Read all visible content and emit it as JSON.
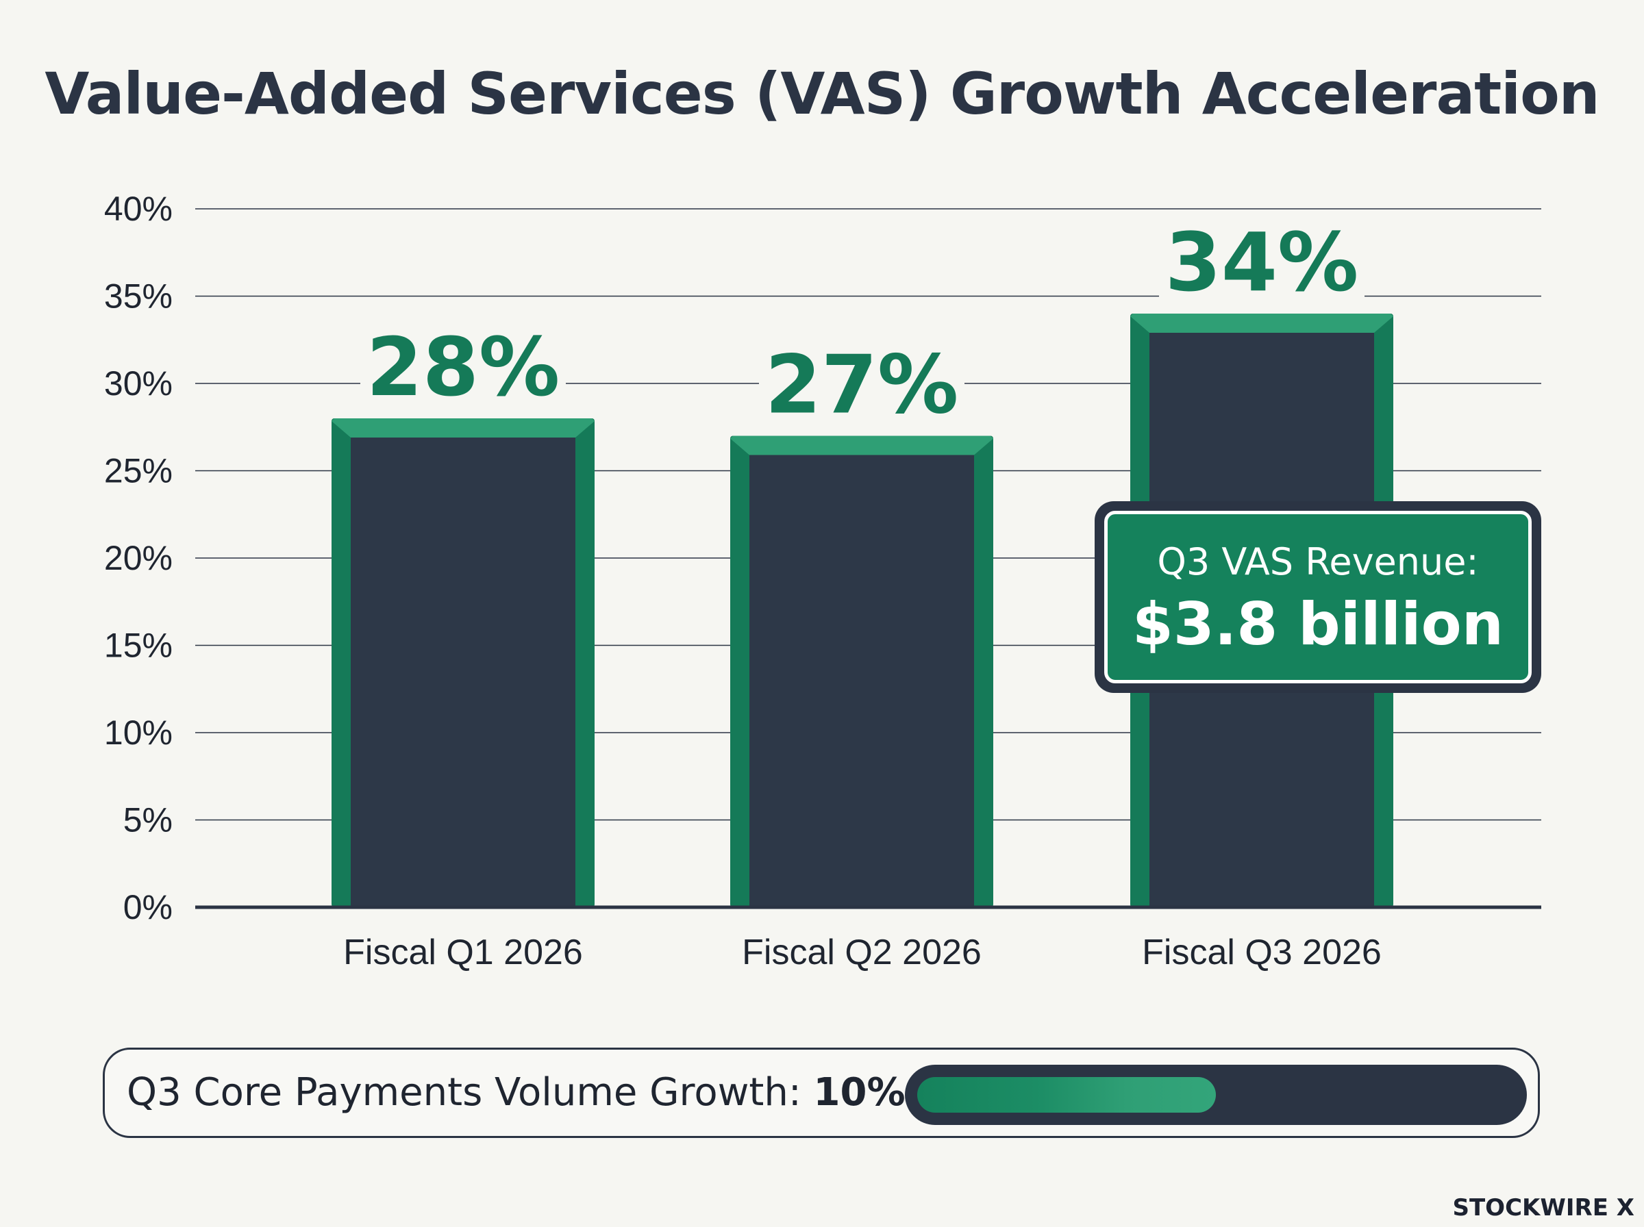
{
  "chart_data": {
    "type": "bar",
    "title": "Value-Added Services (VAS) Growth Acceleration",
    "categories": [
      "Fiscal Q1 2026",
      "Fiscal Q2 2026",
      "Fiscal Q3 2026"
    ],
    "values": [
      28,
      27,
      34
    ],
    "value_labels": [
      "28%",
      "27%",
      "34%"
    ],
    "ylim": [
      0,
      40
    ],
    "yticks": [
      0,
      5,
      10,
      15,
      20,
      25,
      30,
      35,
      40
    ],
    "ytick_labels": [
      "0%",
      "5%",
      "10%",
      "15%",
      "20%",
      "25%",
      "30%",
      "35%",
      "40%"
    ],
    "grid": true,
    "colors": {
      "bar_fill": "#2d3848",
      "bar_border": "#157a58",
      "bar_border_light": "#2f9f75",
      "value_label": "#157a58",
      "gridline": "#2b3444"
    },
    "annotation": {
      "label": "Q3 VAS Revenue:",
      "value": "$3.8 billion",
      "category": "Fiscal Q3 2026"
    }
  },
  "kpi": {
    "label": "Q3 Core Payments Volume Growth: ",
    "value": "10%",
    "fill_fraction": 0.5
  },
  "brand": {
    "logo_text": "STOCKWIRE X"
  }
}
